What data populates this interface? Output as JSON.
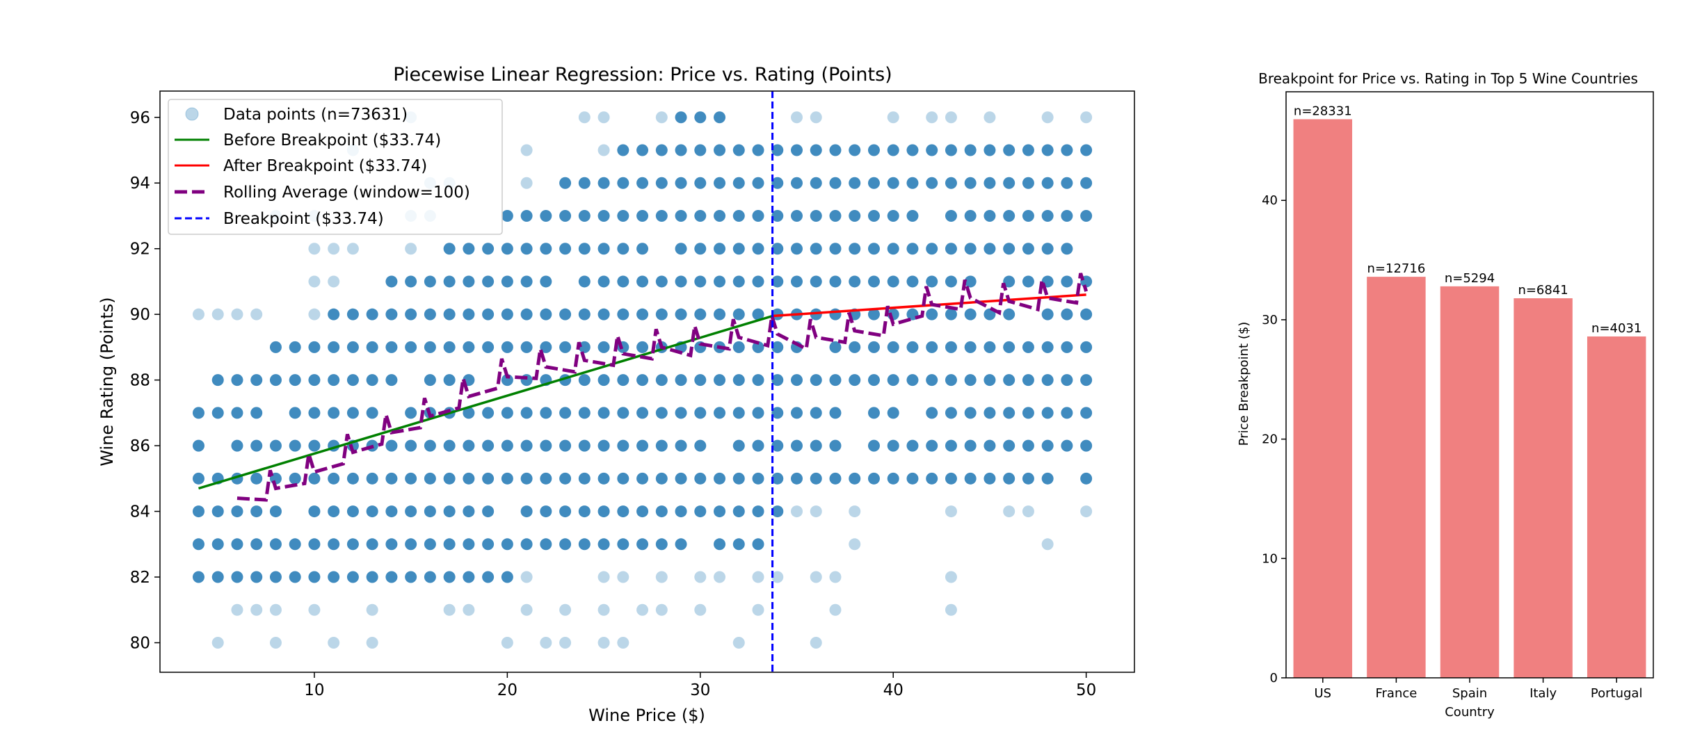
{
  "chart_data": [
    {
      "type": "scatter",
      "title": "Piecewise Linear Regression: Price vs. Rating (Points)",
      "xlabel": "Wine Price ($)",
      "ylabel": "Wine Rating (Points)",
      "xlim": [
        2,
        52.5
      ],
      "ylim": [
        79.1,
        96.8
      ],
      "xticks": [
        10,
        20,
        30,
        40,
        50
      ],
      "yticks": [
        80,
        82,
        84,
        86,
        88,
        90,
        92,
        94,
        96
      ],
      "grid": false,
      "legend_position": "top-left",
      "legend": [
        {
          "label": "Data points (n=73631)",
          "kind": "marker",
          "color": "#1f77b4"
        },
        {
          "label": "Before Breakpoint ($33.74)",
          "kind": "line",
          "color": "#008000"
        },
        {
          "label": "After Breakpoint ($33.74)",
          "kind": "line",
          "color": "#ff0000"
        },
        {
          "label": "Rolling Average (window=100)",
          "kind": "dashed",
          "color": "#800080"
        },
        {
          "label": "Breakpoint ($33.74)",
          "kind": "dashed-thin",
          "color": "#0000ff"
        }
      ],
      "breakpoint": 33.74,
      "before_line": {
        "x": [
          4,
          33.74
        ],
        "y": [
          84.7,
          89.95
        ]
      },
      "after_line": {
        "x": [
          33.74,
          50
        ],
        "y": [
          89.95,
          90.6
        ]
      },
      "scatter_x_range": [
        4,
        50
      ],
      "scatter_y_levels": [
        80,
        81,
        82,
        83,
        84,
        85,
        86,
        87,
        88,
        89,
        90,
        91,
        92,
        93,
        94,
        95,
        96
      ],
      "rolling_average": {
        "x": [
          6,
          8,
          10,
          12,
          14,
          16,
          18,
          20,
          22,
          24,
          26,
          28,
          30,
          32,
          34,
          36,
          38,
          40,
          42,
          44,
          46,
          48,
          50
        ],
        "y": [
          84.4,
          84.7,
          85.2,
          85.8,
          86.4,
          86.9,
          87.5,
          88.1,
          88.4,
          88.6,
          88.8,
          89.0,
          89.1,
          89.3,
          89.4,
          89.3,
          89.5,
          89.7,
          90.3,
          90.5,
          90.4,
          90.5,
          90.7
        ]
      }
    },
    {
      "type": "bar",
      "title": "Breakpoint for Price vs. Rating in Top 5 Wine Countries",
      "xlabel": "Country",
      "ylabel": "Price Breakpoint ($)",
      "categories": [
        "US",
        "France",
        "Spain",
        "Italy",
        "Portugal"
      ],
      "values": [
        46.8,
        33.6,
        32.8,
        31.8,
        28.6
      ],
      "data_labels": [
        "n=28331",
        "n=12716",
        "n=5294",
        "n=6841",
        "n=4031"
      ],
      "color": "#f08080",
      "ylim": [
        0,
        49.1
      ],
      "yticks": [
        0,
        10,
        20,
        30,
        40
      ],
      "grid": false
    }
  ]
}
